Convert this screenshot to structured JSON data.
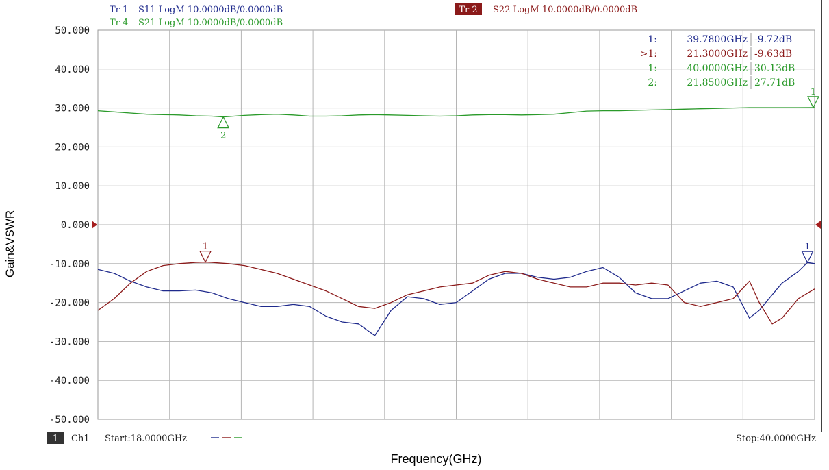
{
  "chart_data": {
    "type": "line",
    "xlabel": "Frequency(GHz)",
    "ylabel": "Gain&VSWR",
    "xlim": [
      18,
      40
    ],
    "ylim": [
      -50,
      50
    ],
    "y_ticks": [
      "50.000",
      "40.000",
      "30.000",
      "20.000",
      "10.000",
      "0.000",
      "-10.000",
      "-20.000",
      "-30.000",
      "-40.000",
      "-50.000"
    ],
    "grid": true,
    "channel": {
      "box": "1",
      "name": "Ch1"
    },
    "start_label": "Start:18.0000GHz",
    "stop_label": "Stop:40.0000GHz",
    "trace_headers": [
      {
        "tr": "Tr 1",
        "text": "S11 LogM 10.0000dB/0.0000dB",
        "color": "#1f2a8c"
      },
      {
        "tr": "Tr 4",
        "text": "S21 LogM 10.0000dB/0.0000dB",
        "color": "#2a9a2a"
      },
      {
        "tr": "Tr 2",
        "text": "S22 LogM 10.0000dB/0.0000dB",
        "color": "#8b1a1a"
      }
    ],
    "marker_table": [
      {
        "id": "1:",
        "freq": "39.7800GHz",
        "val": "-9.72dB",
        "color": "#1f2a8c"
      },
      {
        "id": ">1:",
        "freq": "21.3000GHz",
        "val": "-9.63dB",
        "color": "#8b1a1a"
      },
      {
        "id": "1:",
        "freq": "40.0000GHz",
        "val": "30.13dB",
        "color": "#2a9a2a"
      },
      {
        "id": "2:",
        "freq": "21.8500GHz",
        "val": "27.71dB",
        "color": "#2a9a2a"
      }
    ],
    "series": [
      {
        "color": "#1f2a8c",
        "x": [
          18,
          18.5,
          19,
          19.5,
          20,
          20.5,
          21,
          21.5,
          22,
          22.5,
          23,
          23.5,
          24,
          24.5,
          25,
          25.5,
          26,
          26.5,
          27,
          27.5,
          28,
          28.5,
          29,
          29.5,
          30,
          30.5,
          31,
          31.5,
          32,
          32.5,
          33,
          33.5,
          34,
          34.5,
          35,
          35.5,
          36,
          36.5,
          37,
          37.5,
          38,
          38.3,
          38.7,
          39,
          39.5,
          39.78,
          40
        ],
        "y": [
          -11.5,
          -12.5,
          -14.5,
          -16,
          -17,
          -17,
          -16.8,
          -17.5,
          -19,
          -20,
          -21,
          -21,
          -20.5,
          -21,
          -23.5,
          -25,
          -25.5,
          -28.5,
          -22,
          -18.5,
          -19,
          -20.5,
          -20,
          -17,
          -14,
          -12.5,
          -12.5,
          -13.5,
          -14,
          -13.5,
          -12,
          -11,
          -13.5,
          -17.5,
          -19,
          -19,
          -17,
          -15,
          -14.5,
          -16,
          -24,
          -22,
          -18,
          -15,
          -12,
          -9.72,
          -10
        ]
      },
      {
        "color": "#8b1a1a",
        "x": [
          18,
          18.5,
          19,
          19.5,
          20,
          20.5,
          21,
          21.3,
          21.5,
          22,
          22.5,
          23,
          23.5,
          24,
          24.5,
          25,
          25.5,
          26,
          26.5,
          27,
          27.5,
          28,
          28.5,
          29,
          29.5,
          30,
          30.5,
          31,
          31.5,
          32,
          32.5,
          33,
          33.5,
          34,
          34.5,
          35,
          35.5,
          36,
          36.5,
          37,
          37.5,
          38,
          38.3,
          38.7,
          39,
          39.5,
          40
        ],
        "y": [
          -22,
          -19,
          -15,
          -12,
          -10.5,
          -10,
          -9.7,
          -9.63,
          -9.7,
          -10,
          -10.5,
          -11.5,
          -12.5,
          -14,
          -15.5,
          -17,
          -19,
          -21,
          -21.5,
          -20,
          -18,
          -17,
          -16,
          -15.5,
          -15,
          -13,
          -12,
          -12.5,
          -14,
          -15,
          -16,
          -16,
          -15,
          -15,
          -15.5,
          -15,
          -15.5,
          -20,
          -21,
          -20,
          -19,
          -14.5,
          -20,
          -25.5,
          -24,
          -19,
          -16.5
        ]
      },
      {
        "color": "#2a9a2a",
        "x": [
          18,
          18.5,
          19,
          19.5,
          20,
          20.5,
          21,
          21.5,
          21.85,
          22,
          22.5,
          23,
          23.5,
          24,
          24.5,
          25,
          25.5,
          26,
          26.5,
          27,
          27.5,
          28,
          28.5,
          29,
          29.5,
          30,
          30.5,
          31,
          31.5,
          32,
          32.5,
          33,
          33.5,
          34,
          34.5,
          35,
          35.5,
          36,
          36.5,
          37,
          37.5,
          38,
          38.5,
          39,
          39.5,
          40
        ],
        "y": [
          29.3,
          29,
          28.7,
          28.4,
          28.3,
          28.2,
          28,
          27.9,
          27.71,
          27.8,
          28.1,
          28.3,
          28.4,
          28.2,
          27.9,
          27.9,
          28,
          28.2,
          28.3,
          28.2,
          28.1,
          28,
          27.9,
          28,
          28.2,
          28.3,
          28.3,
          28.2,
          28.3,
          28.4,
          28.8,
          29.2,
          29.3,
          29.3,
          29.4,
          29.5,
          29.6,
          29.7,
          29.8,
          29.9,
          30,
          30.1,
          30.1,
          30.1,
          30.1,
          30.13
        ]
      }
    ],
    "markers": [
      {
        "label": "1",
        "x": 40,
        "y": 30.13,
        "dir": "down",
        "color": "#2a9a2a"
      },
      {
        "label": "2",
        "x": 21.85,
        "y": 27.71,
        "dir": "up",
        "color": "#2a9a2a"
      },
      {
        "label": "1",
        "x": 21.3,
        "y": -9.63,
        "dir": "down",
        "color": "#8b1a1a"
      },
      {
        "label": "1",
        "x": 39.78,
        "y": -9.72,
        "dir": "down",
        "color": "#1f2a8c"
      }
    ],
    "reference_level": 0
  }
}
